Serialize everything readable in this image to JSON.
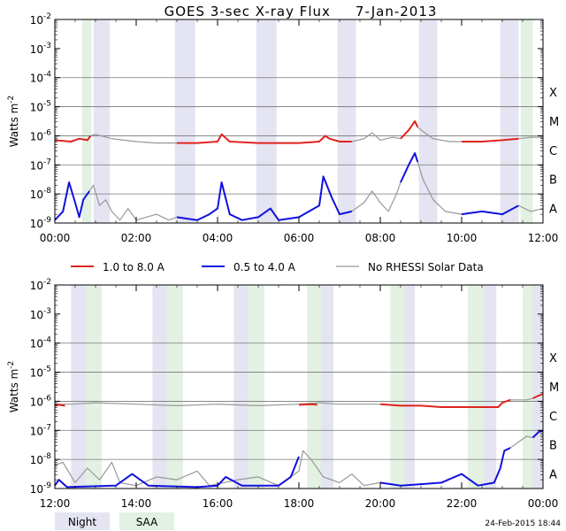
{
  "title": "GOES 3-sec X-ray Flux",
  "date": "7-Jan-2013",
  "footer_date": "24-Feb-2015 18:44",
  "colors": {
    "night": "#e4e4f2",
    "saa": "#e2f1e2",
    "long": "#e0231e",
    "short": "#1010e0",
    "norhessi": "#999999",
    "grid": "#777777"
  },
  "legend": {
    "long": "1.0 to 8.0 A",
    "short": "0.5 to 4.0 A",
    "norhessi": "No RHESSI Solar Data",
    "night": "Night",
    "saa": "SAA"
  },
  "chart_data": [
    {
      "type": "line",
      "panel": "top",
      "ylabel": "Watts m-2",
      "yscale": "log",
      "ylim": [
        1e-09,
        0.01
      ],
      "y_ticks": [
        -9,
        -8,
        -7,
        -6,
        -5,
        -4,
        -3,
        -2
      ],
      "flare_classes": [
        "A",
        "B",
        "C",
        "M",
        "X"
      ],
      "xlim_hours": [
        0,
        12
      ],
      "x_tick_labels": [
        "00:00",
        "02:00",
        "04:00",
        "06:00",
        "08:00",
        "10:00",
        "12:00"
      ],
      "night": [
        [
          0.95,
          1.35
        ],
        [
          2.95,
          3.45
        ],
        [
          4.95,
          5.45
        ],
        [
          6.95,
          7.4
        ],
        [
          8.95,
          9.4
        ],
        [
          10.95,
          11.4
        ]
      ],
      "saa": [
        [
          0.67,
          0.9
        ],
        [
          11.45,
          11.75
        ]
      ],
      "series": [
        {
          "name": "1.0 to 8.0 A",
          "color_key": "long",
          "points": [
            [
              0,
              -6.15
            ],
            [
              0.4,
              -6.2
            ],
            [
              0.6,
              -6.1
            ],
            [
              0.8,
              -6.15
            ],
            [
              0.88,
              -6.0
            ]
          ]
        },
        {
          "name": "No RHESSI Solar Data",
          "color_key": "norhessi",
          "points": [
            [
              0.88,
              -6.0
            ],
            [
              1.0,
              -5.95
            ],
            [
              1.4,
              -6.1
            ],
            [
              2.0,
              -6.2
            ],
            [
              2.5,
              -6.25
            ],
            [
              3.0,
              -6.25
            ]
          ]
        },
        {
          "name": "1.0 to 8.0 A",
          "color_key": "long",
          "points": [
            [
              3.0,
              -6.25
            ],
            [
              3.5,
              -6.25
            ],
            [
              4.0,
              -6.2
            ],
            [
              4.1,
              -5.95
            ],
            [
              4.3,
              -6.2
            ],
            [
              5.0,
              -6.25
            ],
            [
              5.5,
              -6.25
            ],
            [
              6.0,
              -6.25
            ],
            [
              6.5,
              -6.2
            ],
            [
              6.65,
              -6.0
            ],
            [
              6.75,
              -6.1
            ],
            [
              7.0,
              -6.2
            ],
            [
              7.3,
              -6.2
            ]
          ]
        },
        {
          "name": "No RHESSI Solar Data",
          "color_key": "norhessi",
          "points": [
            [
              7.3,
              -6.2
            ],
            [
              7.6,
              -6.1
            ],
            [
              7.8,
              -5.9
            ],
            [
              8.0,
              -6.15
            ],
            [
              8.3,
              -6.05
            ],
            [
              8.5,
              -6.1
            ]
          ]
        },
        {
          "name": "1.0 to 8.0 A",
          "color_key": "long",
          "points": [
            [
              8.5,
              -6.1
            ],
            [
              8.7,
              -5.8
            ],
            [
              8.85,
              -5.5
            ],
            [
              8.92,
              -5.7
            ]
          ]
        },
        {
          "name": "No RHESSI Solar Data",
          "color_key": "norhessi",
          "points": [
            [
              8.92,
              -5.7
            ],
            [
              9.05,
              -5.85
            ],
            [
              9.3,
              -6.1
            ],
            [
              9.7,
              -6.2
            ],
            [
              10.0,
              -6.2
            ]
          ]
        },
        {
          "name": "1.0 to 8.0 A",
          "color_key": "long",
          "points": [
            [
              10.0,
              -6.2
            ],
            [
              10.5,
              -6.2
            ],
            [
              11.0,
              -6.15
            ],
            [
              11.4,
              -6.1
            ]
          ]
        },
        {
          "name": "No RHESSI Solar Data",
          "color_key": "norhessi",
          "points": [
            [
              11.4,
              -6.1
            ],
            [
              11.7,
              -6.05
            ],
            [
              12.0,
              -6.05
            ]
          ]
        },
        {
          "name": "0.5 to 4.0 A",
          "color_key": "short",
          "points": [
            [
              0,
              -8.9
            ],
            [
              0.2,
              -8.6
            ],
            [
              0.35,
              -7.6
            ],
            [
              0.5,
              -8.3
            ],
            [
              0.6,
              -8.8
            ],
            [
              0.7,
              -8.2
            ],
            [
              0.85,
              -7.9
            ]
          ]
        },
        {
          "name": "No RHESSI Solar Data",
          "color_key": "norhessi",
          "points": [
            [
              0.85,
              -7.9
            ],
            [
              0.95,
              -7.7
            ],
            [
              1.1,
              -8.4
            ],
            [
              1.25,
              -8.2
            ],
            [
              1.4,
              -8.6
            ],
            [
              1.6,
              -8.9
            ],
            [
              1.8,
              -8.5
            ],
            [
              2.0,
              -8.9
            ],
            [
              2.5,
              -8.7
            ],
            [
              2.8,
              -8.9
            ],
            [
              3.0,
              -8.8
            ]
          ]
        },
        {
          "name": "0.5 to 4.0 A",
          "color_key": "short",
          "points": [
            [
              3.0,
              -8.8
            ],
            [
              3.5,
              -8.9
            ],
            [
              3.8,
              -8.7
            ],
            [
              4.0,
              -8.5
            ],
            [
              4.1,
              -7.6
            ],
            [
              4.3,
              -8.7
            ],
            [
              4.6,
              -8.9
            ],
            [
              5.0,
              -8.8
            ],
            [
              5.3,
              -8.5
            ],
            [
              5.5,
              -8.9
            ],
            [
              6.0,
              -8.8
            ],
            [
              6.5,
              -8.4
            ],
            [
              6.6,
              -7.4
            ],
            [
              6.8,
              -8.1
            ],
            [
              7.0,
              -8.7
            ],
            [
              7.3,
              -8.6
            ]
          ]
        },
        {
          "name": "No RHESSI Solar Data",
          "color_key": "norhessi",
          "points": [
            [
              7.3,
              -8.6
            ],
            [
              7.6,
              -8.3
            ],
            [
              7.8,
              -7.9
            ],
            [
              8.0,
              -8.3
            ],
            [
              8.2,
              -8.6
            ],
            [
              8.4,
              -8.0
            ],
            [
              8.5,
              -7.6
            ]
          ]
        },
        {
          "name": "0.5 to 4.0 A",
          "color_key": "short",
          "points": [
            [
              8.5,
              -7.6
            ],
            [
              8.7,
              -7.0
            ],
            [
              8.85,
              -6.6
            ],
            [
              8.92,
              -6.9
            ]
          ]
        },
        {
          "name": "No RHESSI Solar Data",
          "color_key": "norhessi",
          "points": [
            [
              8.92,
              -6.9
            ],
            [
              9.05,
              -7.5
            ],
            [
              9.3,
              -8.2
            ],
            [
              9.6,
              -8.6
            ],
            [
              10.0,
              -8.7
            ]
          ]
        },
        {
          "name": "0.5 to 4.0 A",
          "color_key": "short",
          "points": [
            [
              10.0,
              -8.7
            ],
            [
              10.5,
              -8.6
            ],
            [
              11.0,
              -8.7
            ],
            [
              11.4,
              -8.4
            ]
          ]
        },
        {
          "name": "No RHESSI Solar Data",
          "color_key": "norhessi",
          "points": [
            [
              11.4,
              -8.4
            ],
            [
              11.7,
              -8.6
            ],
            [
              12.0,
              -8.5
            ]
          ]
        }
      ]
    },
    {
      "type": "line",
      "panel": "bottom",
      "ylabel": "Watts m-2",
      "yscale": "log",
      "ylim": [
        1e-09,
        0.01
      ],
      "y_ticks": [
        -9,
        -8,
        -7,
        -6,
        -5,
        -4,
        -3,
        -2
      ],
      "flare_classes": [
        "A",
        "B",
        "C",
        "M",
        "X"
      ],
      "xlim_hours": [
        12,
        24
      ],
      "x_tick_labels": [
        "12:00",
        "14:00",
        "16:00",
        "18:00",
        "20:00",
        "22:00",
        "00:00"
      ],
      "night": [
        [
          12.4,
          12.85
        ],
        [
          14.4,
          14.85
        ],
        [
          16.4,
          16.85
        ],
        [
          18.4,
          18.85
        ],
        [
          20.4,
          20.85
        ],
        [
          22.4,
          22.85
        ],
        [
          23.75,
          24.0
        ]
      ],
      "saa": [
        [
          12.75,
          13.15
        ],
        [
          14.75,
          15.15
        ],
        [
          16.75,
          17.15
        ],
        [
          18.2,
          18.55
        ],
        [
          20.25,
          20.6
        ],
        [
          22.15,
          22.55
        ],
        [
          23.5,
          23.75
        ]
      ],
      "series": [
        {
          "name": "No RHESSI Solar Data",
          "color_key": "norhessi",
          "points": [
            [
              12.0,
              -6.1
            ],
            [
              12.4,
              -6.1
            ],
            [
              13.0,
              -6.05
            ],
            [
              14.0,
              -6.1
            ],
            [
              15.0,
              -6.15
            ],
            [
              16.0,
              -6.1
            ],
            [
              17.0,
              -6.15
            ],
            [
              18.0,
              -6.1
            ],
            [
              18.5,
              -6.05
            ]
          ]
        },
        {
          "name": "1.0 to 8.0 A",
          "color_key": "long",
          "points": [
            [
              12.0,
              -6.15
            ],
            [
              12.1,
              -6.12
            ],
            [
              12.25,
              -6.15
            ]
          ]
        },
        {
          "name": "1.0 to 8.0 A",
          "color_key": "long",
          "points": [
            [
              18.0,
              -6.12
            ],
            [
              18.3,
              -6.1
            ],
            [
              18.45,
              -6.12
            ]
          ]
        },
        {
          "name": "No RHESSI Solar Data",
          "color_key": "norhessi",
          "points": [
            [
              18.5,
              -6.05
            ],
            [
              19.0,
              -6.1
            ],
            [
              19.6,
              -6.1
            ],
            [
              20.0,
              -6.1
            ]
          ]
        },
        {
          "name": "1.0 to 8.0 A",
          "color_key": "long",
          "points": [
            [
              20.0,
              -6.1
            ],
            [
              20.5,
              -6.15
            ],
            [
              21.0,
              -6.15
            ],
            [
              21.5,
              -6.2
            ],
            [
              22.0,
              -6.2
            ],
            [
              22.5,
              -6.2
            ],
            [
              22.9,
              -6.2
            ],
            [
              23.0,
              -6.05
            ],
            [
              23.2,
              -5.95
            ]
          ]
        },
        {
          "name": "No RHESSI Solar Data",
          "color_key": "norhessi",
          "points": [
            [
              23.2,
              -5.95
            ],
            [
              23.4,
              -5.95
            ],
            [
              23.6,
              -5.95
            ],
            [
              23.75,
              -5.9
            ]
          ]
        },
        {
          "name": "1.0 to 8.0 A",
          "color_key": "long",
          "points": [
            [
              23.75,
              -5.9
            ],
            [
              23.9,
              -5.8
            ],
            [
              24.0,
              -5.75
            ]
          ]
        },
        {
          "name": "No RHESSI Solar Data",
          "color_key": "norhessi",
          "points": [
            [
              12.0,
              -8.2
            ],
            [
              12.2,
              -8.1
            ],
            [
              12.5,
              -8.8
            ],
            [
              12.8,
              -8.3
            ],
            [
              13.1,
              -8.7
            ],
            [
              13.4,
              -8.1
            ],
            [
              13.6,
              -8.8
            ],
            [
              14.0,
              -8.9
            ],
            [
              14.5,
              -8.6
            ],
            [
              15.0,
              -8.7
            ],
            [
              15.5,
              -8.4
            ],
            [
              15.8,
              -8.9
            ],
            [
              16.5,
              -8.7
            ],
            [
              17.0,
              -8.6
            ],
            [
              17.5,
              -8.9
            ],
            [
              18.0,
              -8.4
            ],
            [
              18.1,
              -7.7
            ],
            [
              18.3,
              -8.0
            ]
          ]
        },
        {
          "name": "0.5 to 4.0 A",
          "color_key": "short",
          "points": [
            [
              12.0,
              -8.9
            ],
            [
              12.1,
              -8.7
            ],
            [
              12.3,
              -8.95
            ],
            [
              13.5,
              -8.9
            ],
            [
              13.9,
              -8.5
            ],
            [
              14.3,
              -8.9
            ],
            [
              15.5,
              -8.95
            ],
            [
              16.0,
              -8.9
            ],
            [
              16.2,
              -8.6
            ],
            [
              16.6,
              -8.9
            ],
            [
              17.5,
              -8.9
            ],
            [
              17.8,
              -8.6
            ],
            [
              18.0,
              -7.9
            ]
          ]
        },
        {
          "name": "No RHESSI Solar Data",
          "color_key": "norhessi",
          "points": [
            [
              18.3,
              -8.0
            ],
            [
              18.6,
              -8.6
            ],
            [
              19.0,
              -8.8
            ],
            [
              19.3,
              -8.5
            ],
            [
              19.6,
              -8.9
            ],
            [
              20.0,
              -8.8
            ]
          ]
        },
        {
          "name": "0.5 to 4.0 A",
          "color_key": "short",
          "points": [
            [
              20.0,
              -8.8
            ],
            [
              20.5,
              -8.9
            ],
            [
              21.0,
              -8.85
            ],
            [
              21.5,
              -8.8
            ],
            [
              22.0,
              -8.5
            ],
            [
              22.4,
              -8.9
            ],
            [
              22.8,
              -8.8
            ],
            [
              22.95,
              -8.3
            ],
            [
              23.05,
              -7.7
            ],
            [
              23.2,
              -7.6
            ]
          ]
        },
        {
          "name": "No RHESSI Solar Data",
          "color_key": "norhessi",
          "points": [
            [
              23.2,
              -7.6
            ],
            [
              23.4,
              -7.4
            ],
            [
              23.6,
              -7.2
            ],
            [
              23.75,
              -7.25
            ]
          ]
        },
        {
          "name": "0.5 to 4.0 A",
          "color_key": "short",
          "points": [
            [
              23.75,
              -7.25
            ],
            [
              23.9,
              -7.05
            ],
            [
              24.0,
              -7.0
            ]
          ]
        }
      ]
    }
  ]
}
